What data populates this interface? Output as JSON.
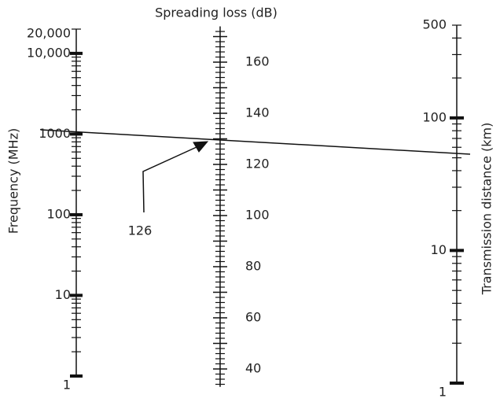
{
  "annotation": "126",
  "scales": [
    {
      "name": "Frequency (MHz)",
      "log": true,
      "range": [
        1,
        20000
      ],
      "labels": [
        {
          "value": 20000,
          "label": "20,000"
        },
        {
          "value": 10000,
          "label": "10,000"
        },
        1000,
        100,
        10,
        1
      ],
      "major": [
        1,
        10,
        100,
        1000,
        10000
      ],
      "minor": [
        2,
        3,
        4,
        5,
        6,
        7,
        8,
        9,
        20,
        30,
        40,
        50,
        60,
        70,
        80,
        90,
        200,
        300,
        400,
        500,
        600,
        700,
        800,
        900,
        2000,
        3000,
        4000,
        5000,
        6000,
        7000,
        8000,
        9000,
        20000
      ]
    },
    {
      "name": "Spreading loss (dB)",
      "log": false,
      "range": [
        33,
        174
      ],
      "labels": [
        160,
        140,
        120,
        100,
        80,
        60,
        40
      ],
      "major": [
        40,
        50,
        60,
        70,
        80,
        90,
        100,
        110,
        120,
        130,
        140,
        150,
        160,
        170
      ],
      "minor": [
        34,
        36,
        38,
        42,
        44,
        46,
        48,
        52,
        54,
        56,
        58,
        62,
        64,
        66,
        68,
        72,
        74,
        76,
        78,
        82,
        84,
        86,
        88,
        92,
        94,
        96,
        98,
        102,
        104,
        106,
        108,
        112,
        114,
        116,
        118,
        122,
        124,
        126,
        128,
        132,
        134,
        136,
        138,
        142,
        144,
        146,
        148,
        152,
        154,
        156,
        158,
        162,
        164,
        166,
        168,
        172
      ]
    },
    {
      "name": "Transmission distance (km)",
      "log": true,
      "range": [
        1,
        500
      ],
      "labels": [
        500,
        100,
        10,
        1
      ],
      "major": [
        1,
        10,
        100
      ],
      "minor": [
        2,
        3,
        4,
        5,
        6,
        7,
        8,
        9,
        20,
        30,
        40,
        50,
        60,
        70,
        80,
        90,
        200,
        300,
        400,
        500
      ]
    }
  ]
}
